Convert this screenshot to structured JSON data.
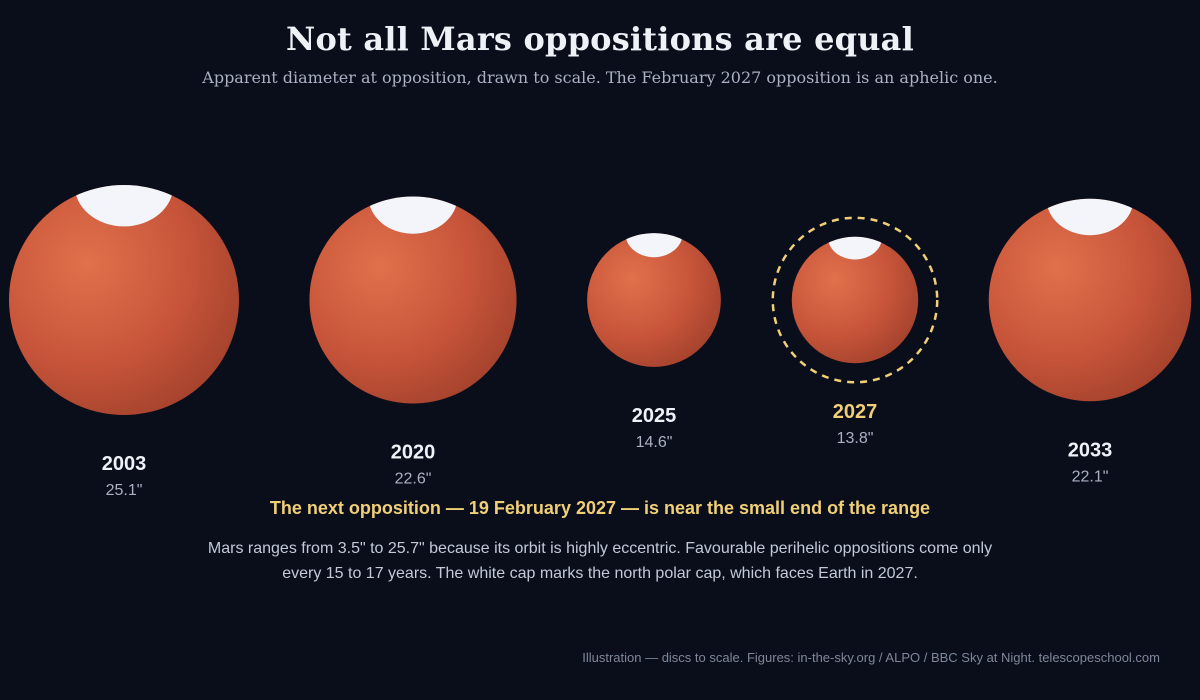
{
  "title": "Not all Mars oppositions are equal",
  "subtitle": "Apparent diameter at opposition, drawn to scale. The February 2027 opposition is an aphelic one.",
  "oppositions": [
    {
      "year": "2003",
      "diameter_label": "25.1\"",
      "diameter_arcsec": 25.1,
      "highlight": false
    },
    {
      "year": "2020",
      "diameter_label": "22.6\"",
      "diameter_arcsec": 22.6,
      "highlight": false
    },
    {
      "year": "2025",
      "diameter_label": "14.6\"",
      "diameter_arcsec": 14.6,
      "highlight": false
    },
    {
      "year": "2027",
      "diameter_label": "13.8\"",
      "diameter_arcsec": 13.8,
      "highlight": true
    },
    {
      "year": "2033",
      "diameter_label": "22.1\"",
      "diameter_arcsec": 22.1,
      "highlight": false
    }
  ],
  "headline": "The next opposition — 19 February 2027 — is near the small end of the range",
  "body": "Mars ranges from 3.5\" to 25.7\" because its orbit is highly eccentric. Favourable perihelic oppositions come only every 15 to 17 years. The white cap marks the north polar cap, which faces Earth in 2027.",
  "footer": "Illustration — discs to scale. Figures: in-the-sky.org / ALPO / BBC Sky at Night. telescopeschool.com",
  "colors": {
    "background": "#0a0e1b",
    "mars_light": "#e0714c",
    "mars_mid": "#c8553a",
    "mars_dark": "#a0402b",
    "polar_cap": "#f3f5fb",
    "highlight": "#f1cf77"
  }
}
